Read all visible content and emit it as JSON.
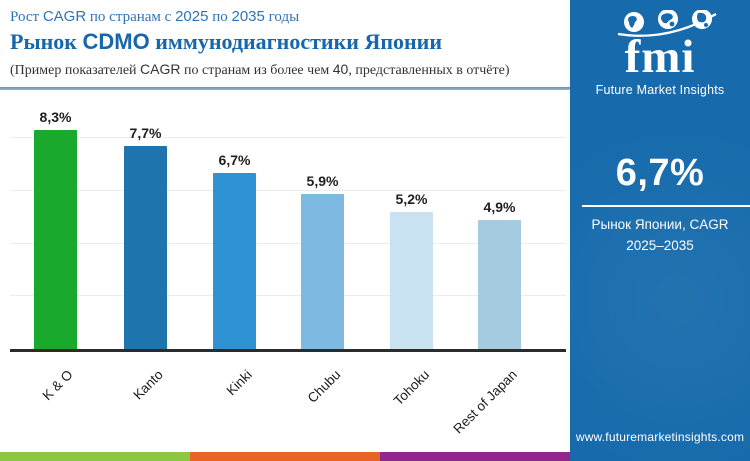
{
  "header": {
    "kicker": {
      "p1": "Рост ",
      "p2": "CAGR",
      "p3": " по странам с ",
      "p4": "2025",
      "p5": " по ",
      "p6": "2035",
      "p7": " годы"
    },
    "title": {
      "p1": "Рынок ",
      "p2": "CDMO",
      "p3": " иммунодиагностики Японии"
    },
    "subtitle": {
      "p1": "(Пример показателей ",
      "p2": "CAGR",
      "p3": " по странам из более чем ",
      "p4": "40",
      "p5": ", представленных в отчёте)"
    }
  },
  "chart_data": {
    "type": "bar",
    "categories": [
      "K & O",
      "Kanto",
      "Kinki",
      "Chubu",
      "Tohoku",
      "Rest of Japan"
    ],
    "values": [
      8.3,
      7.7,
      6.7,
      5.9,
      5.2,
      4.9
    ],
    "value_labels": [
      "8,3%",
      "7,7%",
      "6,7%",
      "5,9%",
      "5,2%",
      "4,9%"
    ],
    "bar_colors": [
      "#19a92c",
      "#1e74ad",
      "#2f93d3",
      "#7db9e0",
      "#c9e2f2",
      "#a4cbe0"
    ],
    "title": "Рынок CDMO иммунодиагностики Японии — рост CAGR по регионам, 2025–2035",
    "xlabel": "",
    "ylabel": "",
    "ylim": [
      0,
      9
    ],
    "gridline_values": [
      2,
      4,
      6,
      8
    ],
    "grid": true,
    "legend": false
  },
  "sidebar": {
    "bg_color": "#176bac",
    "logo": {
      "text": "fmi",
      "tagline": "Future Market Insights",
      "globe_icons": [
        "globe-americas-icon",
        "globe-europe-icon",
        "globe-asia-icon"
      ]
    },
    "stat_value": "6,7%",
    "stat_caption_line1": "Рынок Японии, CAGR",
    "stat_caption_line2": "2025–2035",
    "website": "www.futuremarketinsights.com"
  },
  "footer_strip": {
    "colors": [
      "#8dc63f",
      "#e86426",
      "#8f278f"
    ]
  }
}
